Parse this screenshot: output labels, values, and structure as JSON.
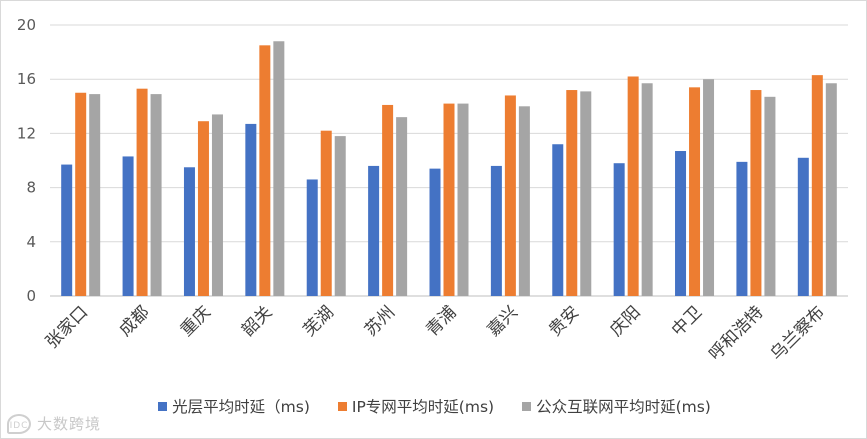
{
  "chart_data": {
    "type": "bar",
    "categories": [
      "张家口",
      "成都",
      "重庆",
      "韶关",
      "芜湖",
      "苏州",
      "青浦",
      "嘉兴",
      "贵安",
      "庆阳",
      "中卫",
      "呼和浩特",
      "乌兰察布"
    ],
    "series": [
      {
        "name": "光层平均时延（ms)",
        "color": "#4472c4",
        "values": [
          9.7,
          10.3,
          9.5,
          12.7,
          8.6,
          9.6,
          9.4,
          9.6,
          11.2,
          9.8,
          10.7,
          9.9,
          10.2
        ]
      },
      {
        "name": "IP专网平均时延(ms)",
        "color": "#ed7d31",
        "values": [
          15.0,
          15.3,
          12.9,
          18.5,
          12.2,
          14.1,
          14.2,
          14.8,
          15.2,
          16.2,
          15.4,
          15.2,
          16.3
        ]
      },
      {
        "name": "公众互联网平均时延(ms)",
        "color": "#a5a5a5",
        "values": [
          14.9,
          14.9,
          13.4,
          18.8,
          11.8,
          13.2,
          14.2,
          14.0,
          15.1,
          15.7,
          16.0,
          14.7,
          15.7
        ]
      }
    ],
    "yticks": [
      0,
      4,
      8,
      12,
      16,
      20
    ],
    "ylim": [
      0,
      20
    ],
    "grid": true,
    "legend": "bottom"
  },
  "watermark": {
    "logo": "IDC",
    "text": "大数跨境"
  }
}
